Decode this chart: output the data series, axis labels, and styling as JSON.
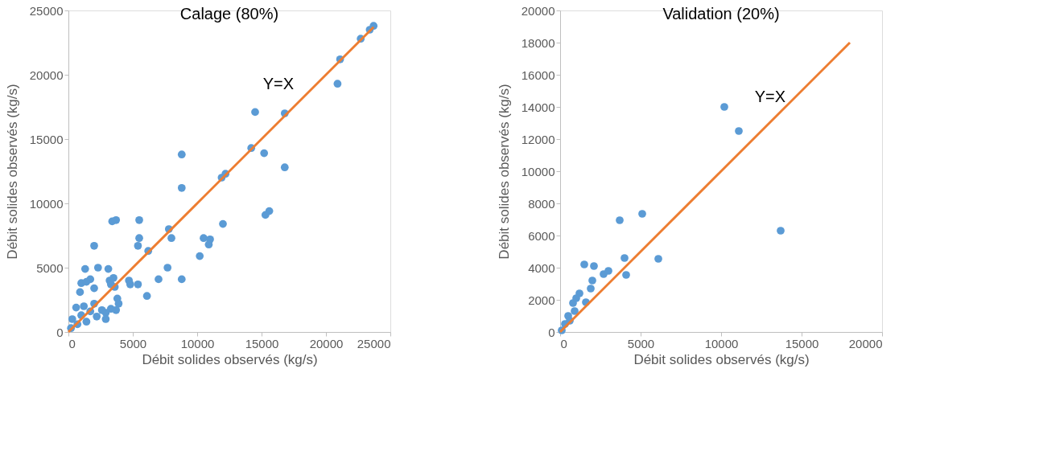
{
  "chart_data": [
    {
      "type": "scatter",
      "title": "Calage (80%)",
      "xlabel": "Débit solides observés (kg/s)",
      "ylabel": "Débit solides observés (kg/s)",
      "xlim": [
        0,
        25000
      ],
      "ylim": [
        0,
        25000
      ],
      "xticks": [
        0,
        5000,
        10000,
        15000,
        20000,
        25000
      ],
      "yticks": [
        0,
        5000,
        10000,
        15000,
        20000,
        25000
      ],
      "grid": false,
      "legend": false,
      "annotations": [
        "Y=X"
      ],
      "series": [
        {
          "color": "#5b9bd5",
          "marker": "circle",
          "x": [
            23700,
            23400,
            22700,
            21100,
            20900,
            16800,
            14500,
            14200,
            15200,
            16800,
            8800,
            8800,
            12200,
            11900,
            15600,
            15300,
            12000,
            10500,
            11000,
            10900,
            10200,
            7800,
            8000,
            7700,
            8800,
            7000,
            5500,
            5500,
            5400,
            6200,
            6100,
            5400,
            4700,
            4800,
            3700,
            3400,
            2000,
            1300,
            2300,
            3100,
            3200,
            3500,
            3600,
            3300,
            1700,
            1000,
            1400,
            900,
            2000,
            3800,
            3900,
            3300,
            3700,
            2900,
            200,
            300,
            700,
            1000,
            1400,
            1700,
            2200,
            2600,
            600,
            1200,
            2000,
            2900
          ],
          "values": [
            23800,
            23500,
            22800,
            21200,
            19300,
            17000,
            17100,
            14300,
            13900,
            12800,
            13800,
            11200,
            12300,
            12000,
            9400,
            9100,
            8400,
            7300,
            7200,
            6800,
            5900,
            8000,
            7300,
            5000,
            4100,
            4100,
            8700,
            7300,
            6700,
            6300,
            2800,
            3700,
            4000,
            3700,
            8700,
            8600,
            6700,
            4900,
            5000,
            4900,
            4000,
            4200,
            3500,
            3700,
            4100,
            3800,
            3900,
            3100,
            3400,
            2600,
            2200,
            1800,
            1700,
            1500,
            300,
            1000,
            600,
            1300,
            800,
            1600,
            1200,
            1700,
            1900,
            2000,
            2200,
            1000
          ]
        },
        {
          "type": "line",
          "marker": "none",
          "color": "#ed7d31",
          "x": [
            0,
            23700
          ],
          "values": [
            0,
            23700
          ]
        }
      ]
    },
    {
      "type": "scatter",
      "title": "Validation (20%)",
      "xlabel": "Débit solides observés (kg/s)",
      "ylabel": "Débit solides observés (kg/s)",
      "xlim": [
        0,
        20000
      ],
      "ylim": [
        0,
        20000
      ],
      "xticks": [
        0,
        5000,
        10000,
        15000,
        20000
      ],
      "yticks": [
        0,
        2000,
        4000,
        6000,
        8000,
        10000,
        12000,
        14000,
        16000,
        18000,
        20000
      ],
      "grid": false,
      "legend": false,
      "annotations": [
        "Y=X"
      ],
      "series": [
        {
          "color": "#5b9bd5",
          "marker": "circle",
          "x": [
            10200,
            11100,
            13700,
            5100,
            3700,
            4000,
            6100,
            4100,
            1500,
            2100,
            2000,
            1900,
            2700,
            3000,
            1600,
            1200,
            800,
            900,
            500,
            300,
            100,
            600,
            1000
          ],
          "values": [
            14000,
            12500,
            6300,
            7350,
            6950,
            4600,
            4550,
            3550,
            4200,
            4100,
            3200,
            2700,
            3600,
            3800,
            1850,
            2400,
            1800,
            1300,
            1000,
            500,
            100,
            700,
            2100
          ]
        },
        {
          "type": "line",
          "marker": "none",
          "color": "#ed7d31",
          "x": [
            0,
            18000
          ],
          "values": [
            0,
            18000
          ]
        }
      ]
    }
  ]
}
